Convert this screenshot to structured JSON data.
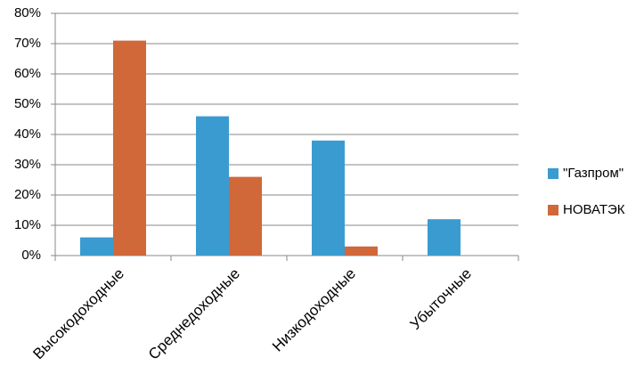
{
  "chart_data": {
    "type": "bar",
    "categories": [
      "Высокодоходные",
      "Среднедоходные",
      "Низкодоходные",
      "Убыточные"
    ],
    "series": [
      {
        "name": "\"Газпром\"",
        "color": "#3a9bd0",
        "values": [
          6,
          46,
          38,
          12
        ]
      },
      {
        "name": "НОВАТЭК",
        "color": "#d0683a",
        "values": [
          71,
          26,
          3,
          0
        ]
      }
    ],
    "ylim": [
      0,
      80
    ],
    "yticks": [
      {
        "value": 0,
        "label": "0%"
      },
      {
        "value": 10,
        "label": "10%"
      },
      {
        "value": 20,
        "label": "20%"
      },
      {
        "value": 30,
        "label": "30%"
      },
      {
        "value": 40,
        "label": "40%"
      },
      {
        "value": 50,
        "label": "50%"
      },
      {
        "value": 60,
        "label": "60%"
      },
      {
        "value": 70,
        "label": "70%"
      },
      {
        "value": 80,
        "label": "80%"
      }
    ],
    "grid": true,
    "legend": "right"
  }
}
